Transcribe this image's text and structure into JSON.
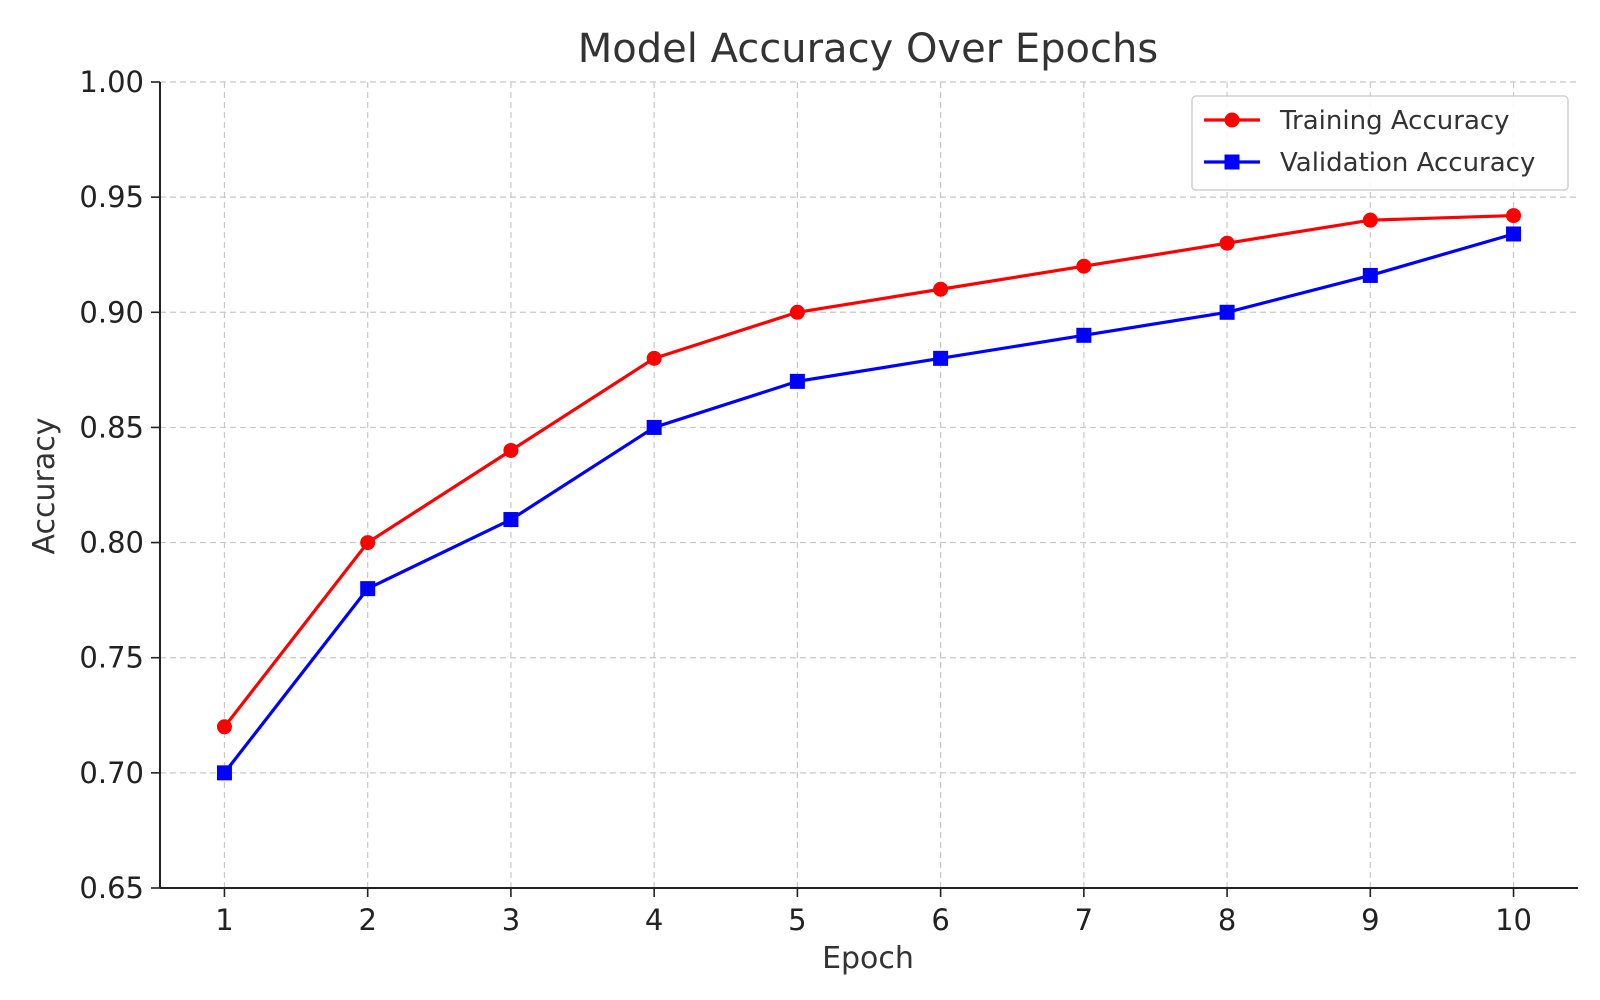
{
  "chart_data": {
    "type": "line",
    "title": "Model Accuracy Over Epochs",
    "xlabel": "Epoch",
    "ylabel": "Accuracy",
    "x": [
      1,
      2,
      3,
      4,
      5,
      6,
      7,
      8,
      9,
      10
    ],
    "x_tick_labels": [
      "1",
      "2",
      "3",
      "4",
      "5",
      "6",
      "7",
      "8",
      "9",
      "10"
    ],
    "xlim": [
      0.55,
      10.45
    ],
    "ylim": [
      0.65,
      1.0
    ],
    "y_ticks": [
      0.65,
      0.7,
      0.75,
      0.8,
      0.85,
      0.9,
      0.95,
      1.0
    ],
    "y_tick_labels": [
      "0.65",
      "0.70",
      "0.75",
      "0.80",
      "0.85",
      "0.90",
      "0.95",
      "1.00"
    ],
    "grid": true,
    "legend_position": "top-right",
    "series": [
      {
        "name": "Training Accuracy",
        "color": "#ff0000",
        "marker": "circle",
        "values": [
          0.72,
          0.8,
          0.84,
          0.88,
          0.9,
          0.91,
          0.92,
          0.93,
          0.94,
          0.942
        ]
      },
      {
        "name": "Validation Accuracy",
        "color": "#0000ff",
        "marker": "square",
        "values": [
          0.7,
          0.78,
          0.81,
          0.85,
          0.87,
          0.88,
          0.89,
          0.9,
          0.916,
          0.934
        ]
      }
    ]
  }
}
